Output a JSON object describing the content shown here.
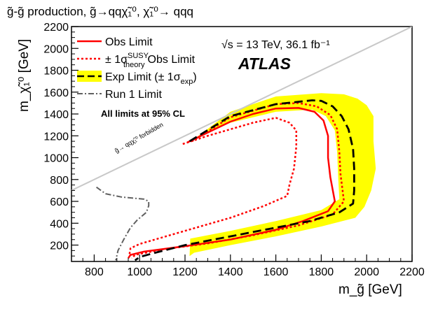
{
  "chart_data": {
    "type": "line",
    "title": "g̃-g̃ production, g̃→qqχ̃₁⁰, χ̃₁⁰→ qqq",
    "xlabel": "m_g̃ [GeV]",
    "ylabel": "m_χ̃₁⁰ [GeV]",
    "xlim": [
      700,
      2200
    ],
    "ylim": [
      50,
      2200
    ],
    "x_ticks": [
      800,
      1000,
      1200,
      1400,
      1600,
      1800,
      2000,
      2200
    ],
    "y_ticks": [
      200,
      400,
      600,
      800,
      1000,
      1200,
      1400,
      1600,
      1800,
      2000,
      2200
    ],
    "grid": false,
    "legend_position": "top-left",
    "annotations": {
      "energy_lumi": "√s = 13 TeV, 36.1 fb⁻¹",
      "experiment": "ATLAS",
      "cl_note": "All limits at 95% CL",
      "forbidden": "g̃→ qqχ̃₁⁰ forbidden"
    },
    "series": [
      {
        "name": "Obs Limit",
        "color": "#ff0000",
        "style": "solid",
        "points": [
          [
            1210,
            1140
          ],
          [
            1300,
            1230
          ],
          [
            1400,
            1330
          ],
          [
            1500,
            1400
          ],
          [
            1600,
            1450
          ],
          [
            1700,
            1455
          ],
          [
            1770,
            1420
          ],
          [
            1810,
            1340
          ],
          [
            1830,
            1200
          ],
          [
            1830,
            1000
          ],
          [
            1840,
            820
          ],
          [
            1860,
            600
          ],
          [
            1830,
            510
          ],
          [
            1720,
            420
          ],
          [
            1600,
            340
          ],
          [
            1400,
            250
          ],
          [
            1200,
            190
          ],
          [
            1020,
            140
          ],
          [
            960,
            110
          ],
          [
            950,
            80
          ]
        ]
      },
      {
        "name": "± 1σ^SUSY_theory Obs Limit (+1σ)",
        "color": "#ff0000",
        "style": "dotted",
        "points": [
          [
            1230,
            1150
          ],
          [
            1400,
            1370
          ],
          [
            1600,
            1490
          ],
          [
            1700,
            1500
          ],
          [
            1780,
            1470
          ],
          [
            1840,
            1390
          ],
          [
            1870,
            1260
          ],
          [
            1880,
            1050
          ],
          [
            1885,
            850
          ],
          [
            1900,
            600
          ],
          [
            1850,
            480
          ],
          [
            1700,
            380
          ],
          [
            1500,
            290
          ],
          [
            1300,
            215
          ],
          [
            1100,
            160
          ],
          [
            980,
            110
          ],
          [
            965,
            80
          ]
        ]
      },
      {
        "name": "± 1σ^SUSY_theory Obs Limit (-1σ)",
        "color": "#ff0000",
        "style": "dotted",
        "points": [
          [
            1190,
            1125
          ],
          [
            1300,
            1200
          ],
          [
            1400,
            1260
          ],
          [
            1500,
            1320
          ],
          [
            1600,
            1365
          ],
          [
            1660,
            1320
          ],
          [
            1690,
            1250
          ],
          [
            1690,
            1100
          ],
          [
            1680,
            900
          ],
          [
            1660,
            750
          ],
          [
            1650,
            650
          ],
          [
            1550,
            560
          ],
          [
            1400,
            450
          ],
          [
            1200,
            330
          ],
          [
            1000,
            210
          ],
          [
            960,
            170
          ],
          [
            955,
            110
          ]
        ]
      },
      {
        "name": "Exp Limit (± 1σ_exp)",
        "color": "#000000",
        "style": "dashed",
        "points": [
          [
            1220,
            1150
          ],
          [
            1400,
            1380
          ],
          [
            1600,
            1490
          ],
          [
            1760,
            1525
          ],
          [
            1800,
            1520
          ],
          [
            1850,
            1470
          ],
          [
            1890,
            1380
          ],
          [
            1920,
            1260
          ],
          [
            1940,
            1080
          ],
          [
            1945,
            900
          ],
          [
            1945,
            700
          ],
          [
            1940,
            580
          ],
          [
            1880,
            500
          ],
          [
            1750,
            420
          ],
          [
            1600,
            360
          ],
          [
            1400,
            280
          ],
          [
            1200,
            200
          ],
          [
            1050,
            120
          ],
          [
            1000,
            90
          ],
          [
            980,
            60
          ]
        ]
      },
      {
        "name": "Exp Limit +1σ_exp",
        "color": "#ffff00",
        "style": "band",
        "points": [
          [
            1240,
            1170
          ],
          [
            1400,
            1420
          ],
          [
            1600,
            1560
          ],
          [
            1800,
            1590
          ],
          [
            1900,
            1580
          ],
          [
            1960,
            1540
          ],
          [
            2000,
            1480
          ],
          [
            2030,
            1380
          ],
          [
            2030,
            1150
          ],
          [
            2040,
            900
          ],
          [
            2020,
            700
          ],
          [
            1990,
            550
          ],
          [
            1950,
            450
          ],
          [
            1800,
            370
          ],
          [
            1600,
            280
          ],
          [
            1400,
            200
          ],
          [
            1240,
            130
          ],
          [
            1220,
            100
          ]
        ]
      },
      {
        "name": "Exp Limit -1σ_exp",
        "color": "#ffff00",
        "style": "band",
        "points": [
          [
            1200,
            1130
          ],
          [
            1400,
            1320
          ],
          [
            1600,
            1420
          ],
          [
            1760,
            1440
          ],
          [
            1820,
            1380
          ],
          [
            1860,
            1250
          ],
          [
            1870,
            1050
          ],
          [
            1875,
            800
          ],
          [
            1880,
            620
          ],
          [
            1800,
            520
          ],
          [
            1600,
            420
          ],
          [
            1400,
            330
          ],
          [
            1200,
            250
          ],
          [
            1050,
            180
          ],
          [
            1000,
            140
          ]
        ]
      },
      {
        "name": "Run 1 Limit",
        "color": "#606060",
        "style": "dashdot",
        "points": [
          [
            810,
            730
          ],
          [
            850,
            670
          ],
          [
            920,
            640
          ],
          [
            1020,
            620
          ],
          [
            1040,
            600
          ],
          [
            1040,
            560
          ],
          [
            1030,
            500
          ],
          [
            990,
            430
          ],
          [
            960,
            360
          ],
          [
            930,
            250
          ],
          [
            905,
            150
          ],
          [
            895,
            60
          ]
        ]
      },
      {
        "name": "kinematic limit",
        "color": "#c8c8c8",
        "style": "solid",
        "points": [
          [
            700,
            700
          ],
          [
            2200,
            2200
          ]
        ]
      }
    ]
  },
  "legend": [
    {
      "label": "Obs Limit",
      "sup": "",
      "sub": ""
    },
    {
      "label_pre": "± 1σ",
      "sup": "SUSY",
      "sub": "theory",
      "label_post": "Obs Limit"
    },
    {
      "label_pre": "Exp Limit (± 1σ",
      "sub": "exp",
      "label_post": ")"
    },
    {
      "label": "Run 1 Limit"
    }
  ]
}
